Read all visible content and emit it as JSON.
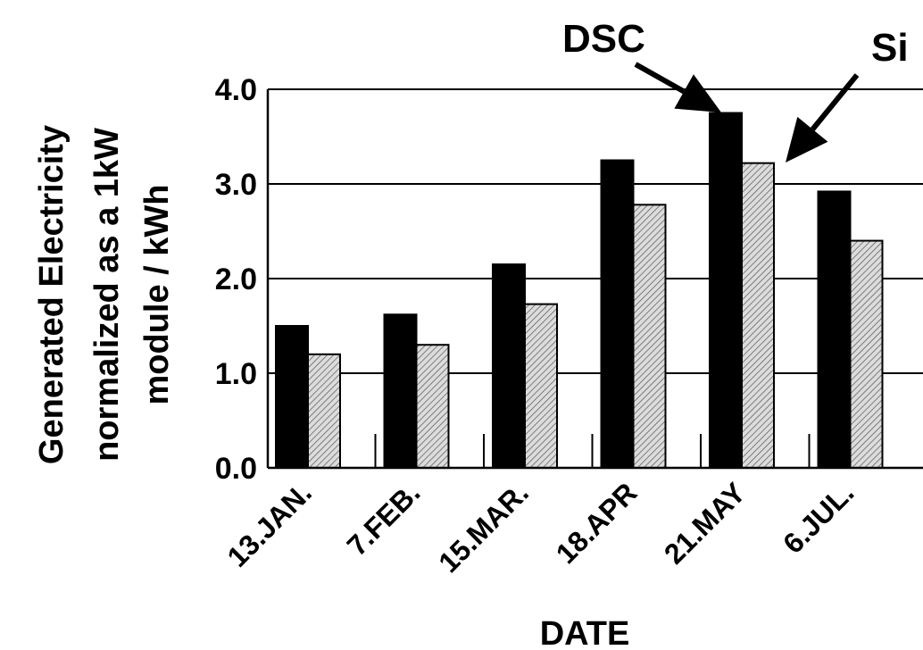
{
  "chart_data": {
    "type": "bar",
    "categories": [
      "13.JAN.",
      "7.FEB.",
      "15.MAR.",
      "18.APR",
      "21.MAY",
      "6.JUL."
    ],
    "series": [
      {
        "name": "DSC",
        "values": [
          1.5,
          1.62,
          2.15,
          3.25,
          3.75,
          2.92
        ],
        "color": "#000000"
      },
      {
        "name": "Si",
        "values": [
          1.2,
          1.3,
          1.73,
          2.78,
          3.22,
          2.4
        ],
        "color": "#d9d9d9"
      }
    ],
    "xlabel": "DATE",
    "ylabel_lines": [
      "Generated Electricity",
      "normalized as a 1kW",
      "module / kWh"
    ],
    "yticks": [
      "0.0",
      "1.0",
      "2.0",
      "3.0",
      "4.0"
    ],
    "ylim": [
      0,
      4.0
    ],
    "grid": true,
    "callouts": [
      {
        "label": "DSC",
        "series": 0,
        "category": 4
      },
      {
        "label": "Si",
        "series": 1,
        "category": 4
      }
    ]
  }
}
